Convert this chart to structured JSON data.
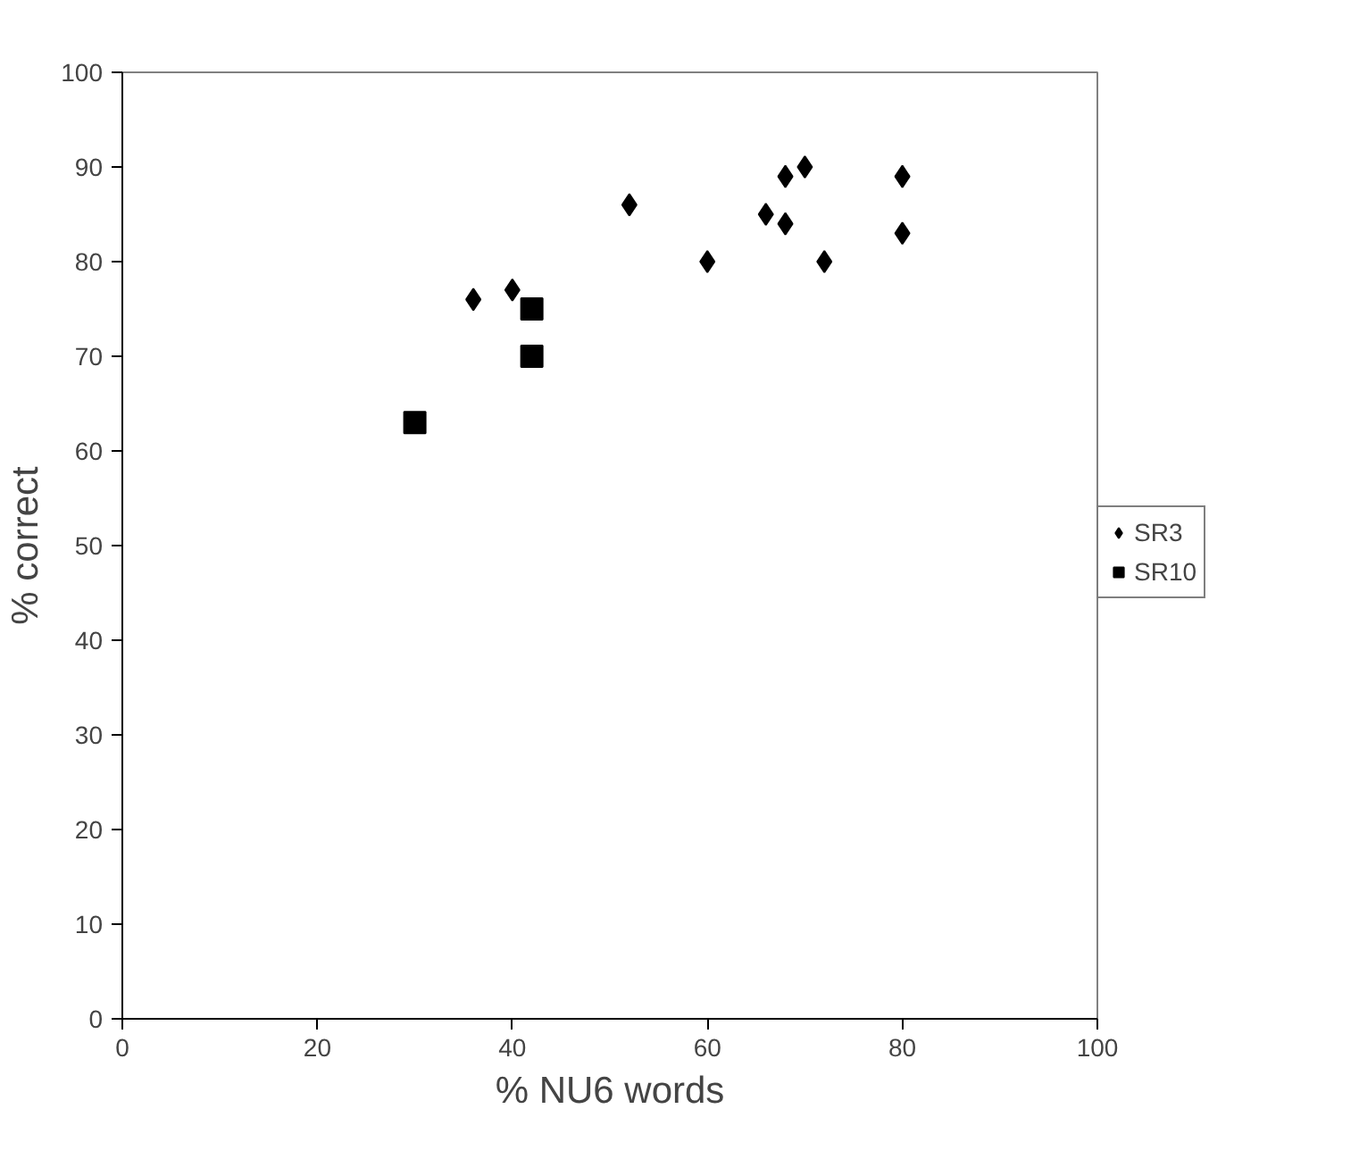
{
  "chart_data": {
    "type": "scatter",
    "xlabel": "% NU6 words",
    "ylabel": "% correct",
    "xlim": [
      0,
      100
    ],
    "ylim": [
      0,
      100
    ],
    "xticks": [
      0,
      20,
      40,
      60,
      80,
      100
    ],
    "yticks": [
      0,
      10,
      20,
      30,
      40,
      50,
      60,
      70,
      80,
      90,
      100
    ],
    "grid": false,
    "legend": "right",
    "series": [
      {
        "name": "SR3",
        "color": "#000000",
        "marker": "diamond",
        "x": [
          36,
          40,
          52,
          60,
          66,
          68,
          68,
          70,
          72,
          80,
          80
        ],
        "values": [
          76,
          77,
          86,
          80,
          85,
          89,
          84,
          90,
          80,
          89,
          83
        ]
      },
      {
        "name": "SR10",
        "color": "#000000",
        "marker": "square",
        "x": [
          30,
          42,
          42
        ],
        "values": [
          63,
          75,
          70
        ]
      }
    ]
  }
}
